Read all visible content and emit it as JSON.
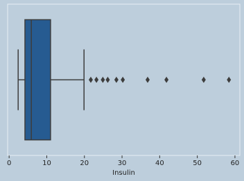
{
  "chart_data": {
    "type": "box",
    "xlabel": "Insulin",
    "xlim": [
      -0.4,
      61.3
    ],
    "xticks": [
      0,
      10,
      20,
      30,
      40,
      50,
      60
    ],
    "whislo": 2.4,
    "q1": 4.2,
    "med": 5.9,
    "q3": 11.0,
    "whishi": 19.9,
    "fliers": [
      21.7,
      23.2,
      24.9,
      26.2,
      28.5,
      30.2,
      36.8,
      41.8,
      51.7,
      58.4
    ],
    "color": "#265b91"
  }
}
